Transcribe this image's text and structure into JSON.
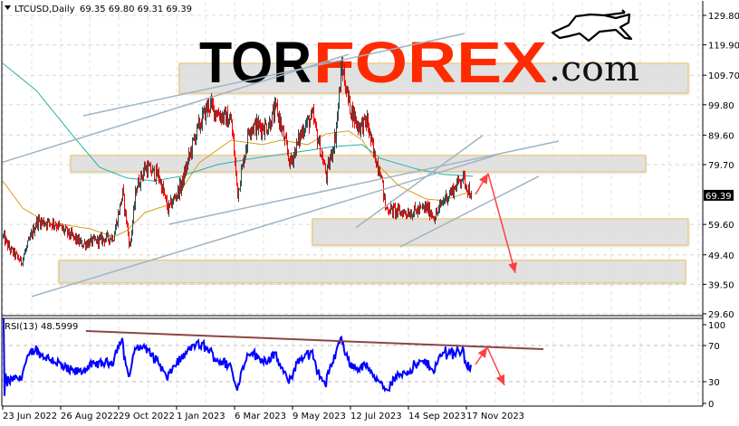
{
  "header": {
    "arrow_icon": "triangle-down-icon",
    "symbol": "LTCUSD,Daily",
    "ohlc": "69.35 69.80 69.31 69.39"
  },
  "rsi_label": "RSI(13) 48.5999",
  "logo": {
    "part1": "TOR",
    "part2": "FOREX",
    "part3": ".com",
    "icon": "bull-icon",
    "colors": {
      "dark": "#000000",
      "accent": "#ff2a00"
    }
  },
  "colors": {
    "bull": "#2f4f4f",
    "bear": "#ff0000",
    "ma_fast": "#d4a017",
    "ma_slow": "#20b2aa",
    "zone_fill": "#e0e0e0",
    "zone_border": "#f0c060",
    "trendline": "#9fb4c4",
    "arrow": "#ff4040",
    "rsi_line": "#0000ff",
    "rsi_trend": "#8b4545",
    "last_price_bg": "#000000"
  },
  "chart_data": [
    {
      "type": "candlestick",
      "title": "LTCUSD,Daily",
      "yticks": [
        "129.80",
        "119.90",
        "109.70",
        "99.80",
        "89.60",
        "79.70",
        "59.60",
        "49.40",
        "39.50",
        "29.60"
      ],
      "ylim": [
        29.6,
        129.8
      ],
      "last_price": "69.39",
      "xticks": [
        "23 Jun 2022",
        "26 Aug 2022",
        "29 Oct 2022",
        "1 Jan 2023",
        "6 Mar 2023",
        "9 May 2023",
        "12 Jul 2023",
        "14 Sep 2023",
        "17 Nov 2023"
      ],
      "grid": true,
      "close_path": [
        [
          "2022-06-23",
          55.5
        ],
        [
          "2022-06-30",
          51.5
        ],
        [
          "2022-07-13",
          47
        ],
        [
          "2022-07-30",
          60.6
        ],
        [
          "2022-08-19",
          60
        ],
        [
          "2022-09-18",
          53
        ],
        [
          "2022-10-23",
          55.5
        ],
        [
          "2022-11-02",
          70
        ],
        [
          "2022-11-10",
          52
        ],
        [
          "2022-11-17",
          72
        ],
        [
          "2022-11-27",
          78.8
        ],
        [
          "2022-12-12",
          75.8
        ],
        [
          "2022-12-22",
          64.6
        ],
        [
          "2023-01-06",
          72.8
        ],
        [
          "2023-01-21",
          89.5
        ],
        [
          "2023-02-05",
          100
        ],
        [
          "2023-02-15",
          97
        ],
        [
          "2023-03-02",
          94
        ],
        [
          "2023-03-09",
          70
        ],
        [
          "2023-03-22",
          92.5
        ],
        [
          "2023-04-11",
          92.5
        ],
        [
          "2023-04-21",
          98.5
        ],
        [
          "2023-05-06",
          80
        ],
        [
          "2023-05-21",
          92.5
        ],
        [
          "2023-05-31",
          95.5
        ],
        [
          "2023-06-15",
          75.8
        ],
        [
          "2023-06-25",
          89.5
        ],
        [
          "2023-07-02",
          113
        ],
        [
          "2023-07-10",
          100
        ],
        [
          "2023-07-20",
          92.5
        ],
        [
          "2023-07-30",
          94
        ],
        [
          "2023-08-06",
          83.4
        ],
        [
          "2023-08-14",
          77.3
        ],
        [
          "2023-08-19",
          65.2
        ],
        [
          "2023-09-03",
          63.7
        ],
        [
          "2023-09-18",
          63.7
        ],
        [
          "2023-10-03",
          65.2
        ],
        [
          "2023-10-13",
          62.1
        ],
        [
          "2023-10-23",
          68.2
        ],
        [
          "2023-11-02",
          71.2
        ],
        [
          "2023-11-12",
          75.8
        ],
        [
          "2023-11-22",
          69.39
        ]
      ],
      "ma_fast": [
        [
          "2022-06-23",
          74.2
        ],
        [
          "2022-07-15",
          65.1
        ],
        [
          "2022-08-09",
          60.6
        ],
        [
          "2022-09-28",
          58.1
        ],
        [
          "2022-10-23",
          55.4
        ],
        [
          "2022-11-07",
          57.5
        ],
        [
          "2022-11-27",
          63.6
        ],
        [
          "2022-12-27",
          66.6
        ],
        [
          "2023-01-26",
          80.3
        ],
        [
          "2023-03-02",
          87.9
        ],
        [
          "2023-04-06",
          86.4
        ],
        [
          "2023-04-26",
          87.9
        ],
        [
          "2023-05-26",
          86.4
        ],
        [
          "2023-06-15",
          90
        ],
        [
          "2023-07-10",
          91
        ],
        [
          "2023-07-25",
          87.9
        ],
        [
          "2023-08-14",
          78.8
        ],
        [
          "2023-09-03",
          72.7
        ],
        [
          "2023-10-03",
          68.2
        ],
        [
          "2023-10-23",
          67.6
        ],
        [
          "2023-11-12",
          69.7
        ],
        [
          "2023-11-21",
          70.6
        ]
      ],
      "ma_slow": [
        [
          "2022-06-23",
          113.7
        ],
        [
          "2022-07-30",
          104.6
        ],
        [
          "2022-09-08",
          89.6
        ],
        [
          "2022-10-08",
          78.8
        ],
        [
          "2022-11-07",
          75.2
        ],
        [
          "2022-12-07",
          74.2
        ],
        [
          "2023-01-06",
          75.8
        ],
        [
          "2023-02-15",
          79.7
        ],
        [
          "2023-03-27",
          81.8
        ],
        [
          "2023-05-16",
          84
        ],
        [
          "2023-06-25",
          85.8
        ],
        [
          "2023-07-25",
          86.4
        ],
        [
          "2023-08-14",
          81.8
        ],
        [
          "2023-09-23",
          78.2
        ],
        [
          "2023-10-23",
          76.4
        ],
        [
          "2023-11-24",
          75.8
        ]
      ],
      "zones": [
        {
          "from": "2023-01-04",
          "to": "2024-07-19",
          "top": 113.7,
          "bottom": 103.7
        },
        {
          "from": "2022-09-06",
          "to": "2024-06-02",
          "top": 82.8,
          "bottom": 77.3
        },
        {
          "from": "2023-05-31",
          "to": "2024-07-19",
          "top": 61.5,
          "bottom": 52.7
        },
        {
          "from": "2022-08-24",
          "to": "2024-07-16",
          "top": 47.6,
          "bottom": 40.0
        }
      ],
      "trendlines": [
        [
          [
            "2022-09-20",
            96.1
          ],
          [
            "2023-11-15",
            123.7
          ]
        ],
        [
          [
            "2022-06-23",
            80.5
          ],
          [
            "2023-07-10",
            116.7
          ]
        ],
        [
          [
            "2022-07-25",
            35.4
          ],
          [
            "2023-12-19",
            82.8
          ]
        ],
        [
          [
            "2023-09-05",
            52.1
          ],
          [
            "2024-02-05",
            75.8
          ]
        ],
        [
          [
            "2022-12-24",
            59.7
          ],
          [
            "2024-02-27",
            87.6
          ]
        ],
        [
          [
            "2023-07-18",
            58.5
          ],
          [
            "2023-12-05",
            89.5
          ]
        ]
      ],
      "arrows": [
        [
          [
            "2023-11-27",
            69.7
          ],
          [
            "2023-12-11",
            76.7
          ]
        ],
        [
          [
            "2023-12-11",
            76.7
          ],
          [
            "2024-01-10",
            43.3
          ]
        ]
      ]
    },
    {
      "type": "line",
      "title": "RSI(13)",
      "last_value": 48.5999,
      "yticks": [
        "100",
        "70",
        "30",
        "0"
      ],
      "ylim": [
        0,
        100
      ],
      "levels": [
        70,
        30
      ],
      "trendline": [
        [
          "2022-09-23",
          86
        ],
        [
          "2024-02-10",
          66
        ]
      ],
      "arrows": [
        [
          [
            "2023-11-27",
            49
          ],
          [
            "2023-12-10",
            68
          ]
        ],
        [
          [
            "2023-12-10",
            68
          ],
          [
            "2023-12-29",
            26
          ]
        ]
      ]
    }
  ]
}
